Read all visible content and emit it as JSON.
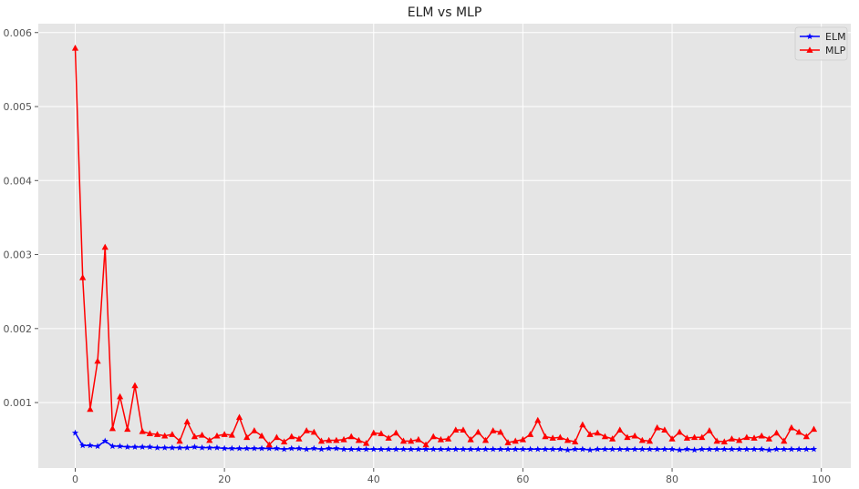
{
  "chart_data": {
    "type": "line",
    "title": "ELM vs MLP",
    "xlabel": "",
    "ylabel": "",
    "xlim": [
      -4.95,
      103.95
    ],
    "ylim": [
      0.000115,
      0.00612
    ],
    "x_ticks": [
      0,
      20,
      40,
      60,
      80,
      100
    ],
    "x_tick_labels": [
      "0",
      "20",
      "40",
      "60",
      "80",
      "100"
    ],
    "y_ticks": [
      0.001,
      0.002,
      0.003,
      0.004,
      0.005,
      0.006
    ],
    "y_tick_labels": [
      "0.001",
      "0.002",
      "0.003",
      "0.004",
      "0.005",
      "0.006"
    ],
    "grid": true,
    "legend_position": "top-right",
    "x": [
      0,
      1,
      2,
      3,
      4,
      5,
      6,
      7,
      8,
      9,
      10,
      11,
      12,
      13,
      14,
      15,
      16,
      17,
      18,
      19,
      20,
      21,
      22,
      23,
      24,
      25,
      26,
      27,
      28,
      29,
      30,
      31,
      32,
      33,
      34,
      35,
      36,
      37,
      38,
      39,
      40,
      41,
      42,
      43,
      44,
      45,
      46,
      47,
      48,
      49,
      50,
      51,
      52,
      53,
      54,
      55,
      56,
      57,
      58,
      59,
      60,
      61,
      62,
      63,
      64,
      65,
      66,
      67,
      68,
      69,
      70,
      71,
      72,
      73,
      74,
      75,
      76,
      77,
      78,
      79,
      80,
      81,
      82,
      83,
      84,
      85,
      86,
      87,
      88,
      89,
      90,
      91,
      92,
      93,
      94,
      95,
      96,
      97,
      98,
      99
    ],
    "series": [
      {
        "name": "ELM",
        "color": "#0000ff",
        "marker": "star",
        "values": [
          0.00059,
          0.00042,
          0.00042,
          0.00041,
          0.00048,
          0.00041,
          0.00041,
          0.0004,
          0.0004,
          0.0004,
          0.0004,
          0.00039,
          0.00039,
          0.00039,
          0.00039,
          0.00039,
          0.0004,
          0.00039,
          0.00039,
          0.00039,
          0.00038,
          0.00038,
          0.00038,
          0.00038,
          0.00038,
          0.00038,
          0.00038,
          0.00038,
          0.00037,
          0.00038,
          0.00038,
          0.00037,
          0.00038,
          0.00037,
          0.00038,
          0.00038,
          0.00037,
          0.00037,
          0.00037,
          0.00037,
          0.00037,
          0.00037,
          0.00037,
          0.00037,
          0.00037,
          0.00037,
          0.00037,
          0.00037,
          0.00037,
          0.00037,
          0.00037,
          0.00037,
          0.00037,
          0.00037,
          0.00037,
          0.00037,
          0.00037,
          0.00037,
          0.00037,
          0.00037,
          0.00037,
          0.00037,
          0.00037,
          0.00037,
          0.00037,
          0.00037,
          0.00036,
          0.00037,
          0.00037,
          0.00036,
          0.00037,
          0.00037,
          0.00037,
          0.00037,
          0.00037,
          0.00037,
          0.00037,
          0.00037,
          0.00037,
          0.00037,
          0.00037,
          0.00036,
          0.00037,
          0.00036,
          0.00037,
          0.00037,
          0.00037,
          0.00037,
          0.00037,
          0.00037,
          0.00037,
          0.00037,
          0.00037,
          0.00036,
          0.00037,
          0.00037,
          0.00037,
          0.00037,
          0.00037,
          0.00037
        ]
      },
      {
        "name": "MLP",
        "color": "#ff0000",
        "marker": "triangle",
        "values": [
          0.00579,
          0.00269,
          0.00091,
          0.00156,
          0.0031,
          0.00065,
          0.00108,
          0.00064,
          0.00123,
          0.00061,
          0.00058,
          0.00057,
          0.00055,
          0.00057,
          0.00048,
          0.00074,
          0.00054,
          0.00056,
          0.00049,
          0.00055,
          0.00057,
          0.00056,
          0.0008,
          0.00053,
          0.00062,
          0.00055,
          0.00043,
          0.00053,
          0.00047,
          0.00054,
          0.00051,
          0.00062,
          0.0006,
          0.00048,
          0.00049,
          0.00049,
          0.0005,
          0.00054,
          0.00049,
          0.00045,
          0.00059,
          0.00058,
          0.00052,
          0.00059,
          0.00048,
          0.00048,
          0.0005,
          0.00043,
          0.00054,
          0.0005,
          0.00051,
          0.00063,
          0.00063,
          0.0005,
          0.0006,
          0.00049,
          0.00062,
          0.0006,
          0.00046,
          0.00048,
          0.0005,
          0.00057,
          0.00076,
          0.00054,
          0.00052,
          0.00053,
          0.00049,
          0.00047,
          0.0007,
          0.00057,
          0.00059,
          0.00054,
          0.00051,
          0.00063,
          0.00053,
          0.00055,
          0.00049,
          0.00048,
          0.00066,
          0.00063,
          0.00051,
          0.0006,
          0.00052,
          0.00053,
          0.00053,
          0.00062,
          0.00048,
          0.00047,
          0.00051,
          0.00049,
          0.00053,
          0.00052,
          0.00055,
          0.00051,
          0.00059,
          0.00048,
          0.00066,
          0.0006,
          0.00054,
          0.00064
        ]
      }
    ]
  },
  "style": {
    "plot_background": "#e5e5e5",
    "grid_color": "#ffffff",
    "tick_color": "#555555"
  }
}
